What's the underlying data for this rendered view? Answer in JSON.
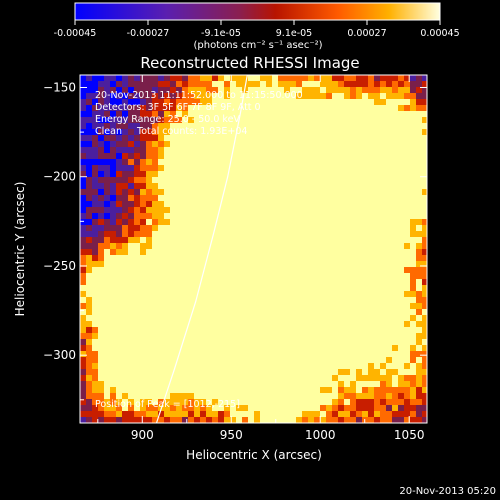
{
  "colorbar": {
    "ticks": [
      "-0.00045",
      "-0.00027",
      "-9.1e-05",
      "9.1e-05",
      "0.00027",
      "0.00045"
    ],
    "unit_label": "(photons cm⁻² s⁻¹ asec⁻²)"
  },
  "chart_data": {
    "type": "heatmap",
    "title": "Reconstructed RHESSI Image",
    "xlabel": "Heliocentric X (arcsec)",
    "ylabel": "Heliocentric Y (arcsec)",
    "xlim": [
      865,
      1060
    ],
    "ylim": [
      -338,
      -143
    ],
    "x_ticks": [
      900,
      950,
      1000,
      1050
    ],
    "y_ticks": [
      -150,
      -200,
      -250,
      -300
    ],
    "colormap": [
      "#0000ff",
      "#4b1f9e",
      "#7a1f4a",
      "#c81e00",
      "#ff6a00",
      "#ffb400",
      "#ffffa0"
    ],
    "limb_line": [
      [
        908,
        -338
      ],
      [
        918,
        -308
      ],
      [
        930,
        -270
      ],
      [
        940,
        -232
      ],
      [
        948,
        -200
      ],
      [
        955,
        -165
      ],
      [
        959,
        -143
      ]
    ],
    "annotations": {
      "time_range": "20-Nov-2013 11:11:52.000 to 11:15:50.000",
      "detectors": "Detectors: 3F 5F 6F 7F 8F 9F, Att 0",
      "energy_range": "Energy Range: 25.0 - 50.0 keV",
      "clean_counts": "Clean     Total counts: 1.93E+04"
    },
    "peak_label": "Position of Peak = [1012,-215]",
    "peak_position": [
      1012,
      -215
    ]
  },
  "footer_timestamp": "20-Nov-2013 05:20"
}
